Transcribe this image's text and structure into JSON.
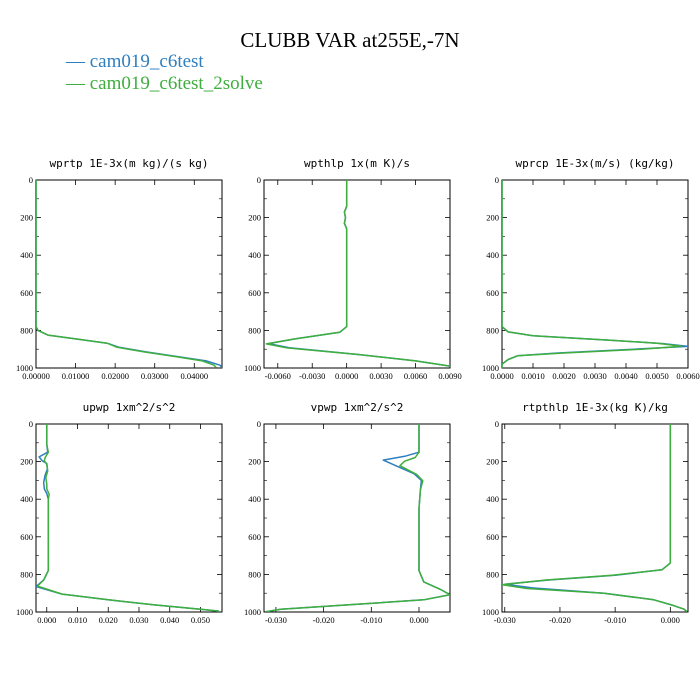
{
  "title": "CLUBB VAR at255E,-7N",
  "legend": [
    {
      "name": "cam019_c6test",
      "color": "#2f7fbf"
    },
    {
      "name": "cam019_c6test_2solve",
      "color": "#3fae3f"
    }
  ],
  "chart_data": [
    {
      "type": "line",
      "title": "wprtp  1E-3x(m kg)/(s kg)",
      "xlim": [
        0,
        0.047
      ],
      "ylim": [
        0,
        1000
      ],
      "y_inverted": true,
      "xticks": [
        "0.00000",
        "0.01000",
        "0.02000",
        "0.03000",
        "0.04000"
      ],
      "xtick_values": [
        0,
        0.01,
        0.02,
        0.03,
        0.04
      ],
      "yticks": [
        "0",
        "200",
        "400",
        "600",
        "800",
        "1000"
      ],
      "series": [
        {
          "name": "cam019_c6test",
          "points": [
            [
              0,
              0
            ],
            [
              0,
              600
            ],
            [
              0,
              780
            ],
            [
              0.0005,
              800
            ],
            [
              0.003,
              825
            ],
            [
              0.01,
              845
            ],
            [
              0.018,
              868
            ],
            [
              0.021,
              890
            ],
            [
              0.028,
              915
            ],
            [
              0.036,
              940
            ],
            [
              0.043,
              962
            ],
            [
              0.0465,
              985
            ],
            [
              0.047,
              998
            ]
          ]
        },
        {
          "name": "cam019_c6test_2solve",
          "points": [
            [
              0,
              0
            ],
            [
              0,
              600
            ],
            [
              0,
              780
            ],
            [
              0.0005,
              800
            ],
            [
              0.003,
              825
            ],
            [
              0.01,
              845
            ],
            [
              0.018,
              868
            ],
            [
              0.0205,
              890
            ],
            [
              0.0275,
              915
            ],
            [
              0.0355,
              940
            ],
            [
              0.042,
              962
            ],
            [
              0.045,
              985
            ],
            [
              0.0455,
              998
            ]
          ]
        }
      ]
    },
    {
      "type": "line",
      "title": "wpthlp  1x(m K)/s",
      "xlim": [
        -0.0072,
        0.009
      ],
      "ylim": [
        0,
        1000
      ],
      "y_inverted": true,
      "xticks": [
        "-0.0060",
        "-0.0030",
        "0.0000",
        "0.0030",
        "0.0060",
        "0.0090"
      ],
      "xtick_values": [
        -0.006,
        -0.003,
        0,
        0.003,
        0.006,
        0.009
      ],
      "yticks": [
        "0",
        "200",
        "400",
        "600",
        "800",
        "1000"
      ],
      "series": [
        {
          "name": "cam019_c6test",
          "points": [
            [
              0,
              0
            ],
            [
              0,
              140
            ],
            [
              -0.0002,
              170
            ],
            [
              -0.0001,
              200
            ],
            [
              -0.0002,
              230
            ],
            [
              0,
              260
            ],
            [
              0,
              780
            ],
            [
              -0.0006,
              810
            ],
            [
              -0.0045,
              845
            ],
            [
              -0.0068,
              870
            ],
            [
              -0.005,
              892
            ],
            [
              0.001,
              928
            ],
            [
              0.006,
              962
            ],
            [
              0.009,
              990
            ]
          ]
        },
        {
          "name": "cam019_c6test_2solve",
          "points": [
            [
              0,
              0
            ],
            [
              0,
              140
            ],
            [
              -0.0002,
              170
            ],
            [
              -0.0001,
              200
            ],
            [
              -0.0002,
              230
            ],
            [
              0,
              260
            ],
            [
              0,
              780
            ],
            [
              -0.0006,
              810
            ],
            [
              -0.0045,
              845
            ],
            [
              -0.007,
              872
            ],
            [
              -0.0052,
              893
            ],
            [
              0.001,
              928
            ],
            [
              0.006,
              962
            ],
            [
              0.009,
              990
            ]
          ]
        }
      ]
    },
    {
      "type": "line",
      "title": "wprcp  1E-3x(m/s) (kg/kg)",
      "xlim": [
        0,
        0.006
      ],
      "ylim": [
        0,
        1000
      ],
      "y_inverted": true,
      "xticks": [
        "0.0000",
        "0.0010",
        "0.0020",
        "0.0030",
        "0.0040",
        "0.0050",
        "0.0060"
      ],
      "xtick_values": [
        0,
        0.001,
        0.002,
        0.003,
        0.004,
        0.005,
        0.006
      ],
      "yticks": [
        "0",
        "200",
        "400",
        "600",
        "800",
        "1000"
      ],
      "series": [
        {
          "name": "cam019_c6test",
          "points": [
            [
              0,
              0
            ],
            [
              0,
              780
            ],
            [
              0.0002,
              808
            ],
            [
              0.001,
              828
            ],
            [
              0.0035,
              852
            ],
            [
              0.0052,
              870
            ],
            [
              0.006,
              885
            ],
            [
              0.004,
              902
            ],
            [
              0.0018,
              920
            ],
            [
              0.0005,
              935
            ],
            [
              0.0002,
              955
            ],
            [
              0,
              980
            ],
            [
              0,
              1000
            ]
          ]
        },
        {
          "name": "cam019_c6test_2solve",
          "points": [
            [
              0,
              0
            ],
            [
              0,
              780
            ],
            [
              0.0002,
              808
            ],
            [
              0.001,
              828
            ],
            [
              0.0035,
              852
            ],
            [
              0.005,
              868
            ],
            [
              0.0058,
              884
            ],
            [
              0.0045,
              900
            ],
            [
              0.002,
              920
            ],
            [
              0.0005,
              935
            ],
            [
              0.0002,
              955
            ],
            [
              0,
              980
            ],
            [
              0,
              1000
            ]
          ]
        }
      ]
    },
    {
      "type": "line",
      "title": "upwp  1xm^2/s^2",
      "xlim": [
        -0.0035,
        0.057
      ],
      "ylim": [
        0,
        1000
      ],
      "y_inverted": true,
      "xticks": [
        "0.000",
        "0.010",
        "0.020",
        "0.030",
        "0.040",
        "0.050"
      ],
      "xtick_values": [
        0,
        0.01,
        0.02,
        0.03,
        0.04,
        0.05
      ],
      "yticks": [
        "0",
        "200",
        "400",
        "600",
        "800",
        "1000"
      ],
      "series": [
        {
          "name": "cam019_c6test",
          "points": [
            [
              0,
              0
            ],
            [
              0,
              110
            ],
            [
              0.0003,
              150
            ],
            [
              -0.0025,
              175
            ],
            [
              -0.0015,
              195
            ],
            [
              0,
              210
            ],
            [
              0.0002,
              240
            ],
            [
              -0.0005,
              270
            ],
            [
              -0.001,
              310
            ],
            [
              -0.0008,
              345
            ],
            [
              0,
              370
            ],
            [
              0.0005,
              400
            ],
            [
              0.0005,
              780
            ],
            [
              -0.001,
              830
            ],
            [
              -0.0035,
              865
            ],
            [
              0.005,
              905
            ],
            [
              0.02,
              935
            ],
            [
              0.035,
              962
            ],
            [
              0.05,
              985
            ],
            [
              0.056,
              995
            ]
          ]
        },
        {
          "name": "cam019_c6test_2solve",
          "points": [
            [
              0,
              0
            ],
            [
              0,
              110
            ],
            [
              0.0005,
              150
            ],
            [
              -0.0005,
              178
            ],
            [
              -0.0008,
              195
            ],
            [
              0,
              215
            ],
            [
              0.0003,
              250
            ],
            [
              -0.0003,
              285
            ],
            [
              0,
              320
            ],
            [
              0,
              345
            ],
            [
              0.0008,
              375
            ],
            [
              0.0005,
              400
            ],
            [
              0.0005,
              780
            ],
            [
              -0.001,
              830
            ],
            [
              -0.003,
              862
            ],
            [
              0.005,
              905
            ],
            [
              0.02,
              935
            ],
            [
              0.035,
              962
            ],
            [
              0.05,
              985
            ],
            [
              0.056,
              995
            ]
          ]
        }
      ]
    },
    {
      "type": "line",
      "title": "vpwp  1xm^2/s^2",
      "xlim": [
        -0.0325,
        0.0065
      ],
      "ylim": [
        0,
        1000
      ],
      "y_inverted": true,
      "xticks": [
        "-0.030",
        "-0.020",
        "-0.010",
        "0.000"
      ],
      "xtick_values": [
        -0.03,
        -0.02,
        -0.01,
        0
      ],
      "yticks": [
        "0",
        "200",
        "400",
        "600",
        "800",
        "1000"
      ],
      "series": [
        {
          "name": "cam019_c6test",
          "points": [
            [
              0,
              0
            ],
            [
              0,
              150
            ],
            [
              -0.003,
              172
            ],
            [
              -0.0075,
              192
            ],
            [
              -0.005,
              220
            ],
            [
              -0.001,
              265
            ],
            [
              0.0005,
              300
            ],
            [
              0.0003,
              350
            ],
            [
              0,
              450
            ],
            [
              0,
              780
            ],
            [
              0.001,
              840
            ],
            [
              0.0045,
              880
            ],
            [
              0.0065,
              908
            ],
            [
              0.001,
              935
            ],
            [
              -0.015,
              962
            ],
            [
              -0.029,
              985
            ],
            [
              -0.032,
              998
            ]
          ]
        },
        {
          "name": "cam019_c6test_2solve",
          "points": [
            [
              0,
              0
            ],
            [
              0,
              150
            ],
            [
              -0.0008,
              178
            ],
            [
              -0.003,
              198
            ],
            [
              -0.004,
              222
            ],
            [
              -0.0005,
              268
            ],
            [
              0.0008,
              302
            ],
            [
              0.0003,
              350
            ],
            [
              0,
              450
            ],
            [
              0,
              780
            ],
            [
              0.001,
              840
            ],
            [
              0.0045,
              880
            ],
            [
              0.0065,
              908
            ],
            [
              0.001,
              935
            ],
            [
              -0.015,
              962
            ],
            [
              -0.029,
              985
            ],
            [
              -0.032,
              998
            ]
          ]
        }
      ]
    },
    {
      "type": "line",
      "title": "rtpthlp  1E-3x(kg K)/kg",
      "xlim": [
        -0.0305,
        0.0032
      ],
      "ylim": [
        0,
        1000
      ],
      "y_inverted": true,
      "xticks": [
        "-0.030",
        "-0.020",
        "-0.010",
        "0.000"
      ],
      "xtick_values": [
        -0.03,
        -0.02,
        -0.01,
        0
      ],
      "yticks": [
        "0",
        "200",
        "400",
        "600",
        "800",
        "1000"
      ],
      "series": [
        {
          "name": "cam019_c6test",
          "points": [
            [
              0,
              0
            ],
            [
              0,
              740
            ],
            [
              -0.0015,
              775
            ],
            [
              -0.01,
              805
            ],
            [
              -0.022,
              830
            ],
            [
              -0.03,
              852
            ],
            [
              -0.025,
              872
            ],
            [
              -0.012,
              900
            ],
            [
              -0.003,
              935
            ],
            [
              0.0005,
              965
            ],
            [
              0.0025,
              985
            ],
            [
              0.003,
              998
            ]
          ]
        },
        {
          "name": "cam019_c6test_2solve",
          "points": [
            [
              0,
              0
            ],
            [
              0,
              740
            ],
            [
              -0.0015,
              775
            ],
            [
              -0.0105,
              805
            ],
            [
              -0.0225,
              830
            ],
            [
              -0.0305,
              855
            ],
            [
              -0.026,
              875
            ],
            [
              -0.012,
              900
            ],
            [
              -0.003,
              935
            ],
            [
              0.0005,
              965
            ],
            [
              0.0025,
              985
            ],
            [
              0.003,
              998
            ]
          ]
        }
      ]
    }
  ]
}
